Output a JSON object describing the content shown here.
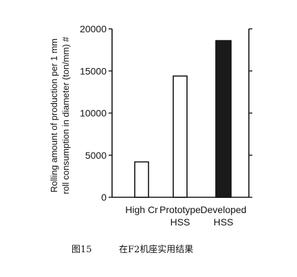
{
  "chart_data": {
    "type": "bar",
    "categories": [
      [
        "High Cr"
      ],
      [
        "Prototype",
        "HSS"
      ],
      [
        "Developed",
        "HSS"
      ]
    ],
    "values": [
      4200,
      14400,
      18600
    ],
    "fills": [
      "#ffffff",
      "#ffffff",
      "#1a1a1a"
    ],
    "ylabel": [
      "Rolling amount of production per 1 mm",
      "roll consumption in diameter (ton/mm) #"
    ],
    "ylim": [
      0,
      20000
    ],
    "yticks": [
      0,
      5000,
      10000,
      15000,
      20000
    ],
    "grid": false
  },
  "caption": {
    "figure_no": "图15",
    "text": "在F2机座实用结果"
  }
}
